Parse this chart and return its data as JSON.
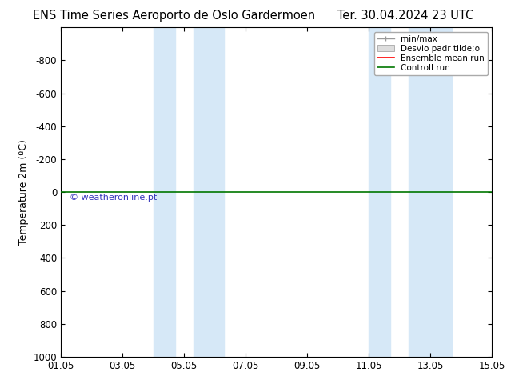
{
  "title_left": "ENS Time Series Aeroporto de Oslo Gardermoen",
  "title_right": "Ter. 30.04.2024 23 UTC",
  "ylabel": "Temperature 2m (ºC)",
  "xlabel_ticks": [
    "01.05",
    "03.05",
    "05.05",
    "07.05",
    "09.05",
    "11.05",
    "13.05",
    "15.05"
  ],
  "x_tick_vals": [
    0,
    2,
    4,
    6,
    8,
    10,
    12,
    14
  ],
  "xlim": [
    0,
    14
  ],
  "ylim": [
    1000,
    -1000
  ],
  "yticks": [
    -800,
    -600,
    -400,
    -200,
    0,
    200,
    400,
    600,
    800,
    1000
  ],
  "background_color": "#ffffff",
  "plot_bg_color": "#ffffff",
  "shaded_bands": [
    {
      "x_start": 3.0,
      "x_end": 3.7
    },
    {
      "x_start": 4.3,
      "x_end": 5.3
    },
    {
      "x_start": 10.0,
      "x_end": 10.7
    },
    {
      "x_start": 11.3,
      "x_end": 12.7
    }
  ],
  "shaded_color": "#d6e8f7",
  "green_line_y": 0,
  "watermark": "© weatheronline.pt",
  "watermark_color": "#3333bb",
  "legend_items": [
    {
      "label": "min/max",
      "color": "#999999",
      "type": "minmax"
    },
    {
      "label": "Desvio padr tilde;o",
      "color": "#cccccc",
      "type": "fill"
    },
    {
      "label": "Ensemble mean run",
      "color": "#ff0000",
      "type": "line"
    },
    {
      "label": "Controll run",
      "color": "#007700",
      "type": "line"
    }
  ],
  "tick_label_size": 8.5,
  "title_fontsize": 10.5,
  "axis_label_fontsize": 9
}
